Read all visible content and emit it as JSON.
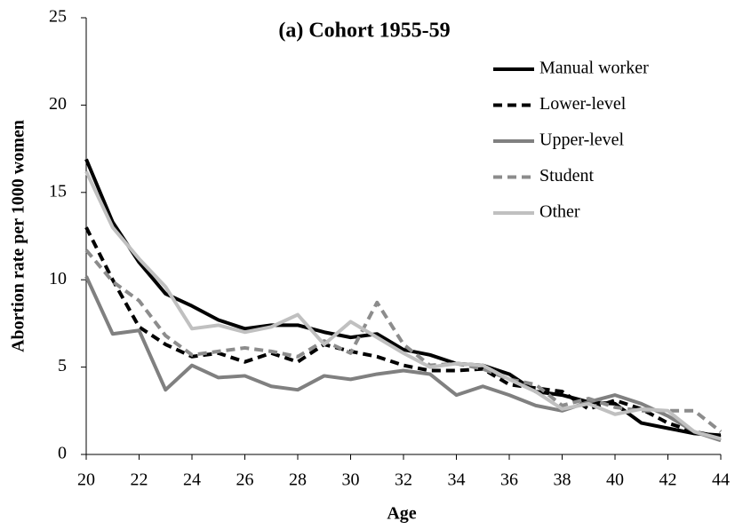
{
  "chart_data": {
    "type": "line",
    "title": "(a) Cohort 1955-59",
    "x_label": "Age",
    "y_label": "Abortion rate per 1000 women",
    "x": [
      20,
      21,
      22,
      23,
      24,
      25,
      26,
      27,
      28,
      29,
      30,
      31,
      32,
      33,
      34,
      35,
      36,
      37,
      38,
      39,
      40,
      41,
      42,
      43,
      44
    ],
    "xlim": [
      20,
      44
    ],
    "xticks": [
      20,
      22,
      24,
      26,
      28,
      30,
      32,
      34,
      36,
      38,
      40,
      42,
      44
    ],
    "ylim": [
      0,
      25
    ],
    "yticks": [
      0,
      5,
      10,
      15,
      20,
      25
    ],
    "legend": "upper right",
    "series": [
      {
        "name": "Manual worker",
        "color": "#000000",
        "dash": false,
        "values": [
          16.9,
          13.3,
          11.0,
          9.2,
          8.5,
          7.7,
          7.2,
          7.4,
          7.4,
          7.0,
          6.7,
          6.9,
          6.0,
          5.7,
          5.2,
          5.1,
          4.6,
          3.6,
          3.4,
          3.0,
          2.9,
          1.8,
          1.5,
          1.2,
          1.1
        ]
      },
      {
        "name": "Lower-level",
        "color": "#000000",
        "dash": true,
        "values": [
          13.0,
          10.0,
          7.3,
          6.3,
          5.6,
          5.8,
          5.3,
          5.8,
          5.3,
          6.3,
          5.9,
          5.6,
          5.1,
          4.8,
          4.8,
          4.9,
          4.0,
          3.8,
          3.6,
          2.6,
          3.1,
          2.6,
          1.8,
          1.3,
          1.0
        ]
      },
      {
        "name": "Upper-level",
        "color": "#808080",
        "dash": false,
        "values": [
          10.2,
          6.9,
          7.1,
          3.7,
          5.1,
          4.4,
          4.5,
          3.9,
          3.7,
          4.5,
          4.3,
          4.6,
          4.8,
          4.6,
          3.4,
          3.9,
          3.4,
          2.8,
          2.5,
          3.0,
          3.4,
          2.9,
          2.2,
          1.3,
          0.8
        ]
      },
      {
        "name": "Student",
        "color": "#8c8c8c",
        "dash": true,
        "values": [
          11.7,
          9.9,
          8.8,
          6.8,
          5.7,
          5.9,
          6.1,
          5.9,
          5.6,
          6.5,
          5.8,
          8.7,
          6.3,
          5.1,
          5.2,
          4.9,
          4.3,
          4.0,
          2.8,
          3.2,
          2.7,
          2.5,
          2.5,
          2.5,
          1.3
        ]
      },
      {
        "name": "Other",
        "color": "#c0c0c0",
        "dash": false,
        "values": [
          16.2,
          13.0,
          11.2,
          9.6,
          7.2,
          7.4,
          7.0,
          7.3,
          8.0,
          6.3,
          7.6,
          6.7,
          5.8,
          5.0,
          5.2,
          5.1,
          4.3,
          3.6,
          2.6,
          2.9,
          2.3,
          2.6,
          2.5,
          1.3,
          0.9
        ]
      }
    ]
  }
}
